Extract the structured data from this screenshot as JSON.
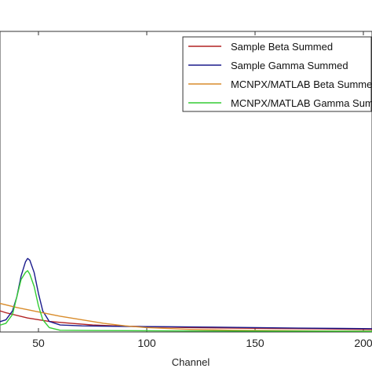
{
  "chart_data": {
    "type": "line",
    "title": "",
    "xlabel": "Channel",
    "ylabel": "",
    "xlim": [
      -17,
      227
    ],
    "ylim": [
      0,
      1
    ],
    "xticks": [
      50,
      100,
      150,
      200
    ],
    "xtick_labels": [
      "50",
      "100",
      "150",
      "200"
    ],
    "grid": false,
    "legend_placement": "top-right",
    "series": [
      {
        "name": "Sample Beta Summed",
        "color": "#b22222",
        "x": [
          -17,
          -5,
          5,
          15,
          25,
          35,
          45,
          55,
          65,
          75,
          85,
          100,
          120,
          140,
          160,
          180,
          200,
          215,
          227
        ],
        "y": [
          0.28,
          0.26,
          0.23,
          0.19,
          0.15,
          0.11,
          0.08,
          0.06,
          0.05,
          0.04,
          0.035,
          0.03,
          0.025,
          0.022,
          0.02,
          0.018,
          0.015,
          0.012,
          0.01
        ]
      },
      {
        "name": "Sample Gamma Summed",
        "color": "#1a1a8c",
        "x": [
          -17,
          0,
          10,
          20,
          30,
          35,
          38,
          40,
          42,
          44,
          45,
          46,
          48,
          50,
          52,
          55,
          60,
          70,
          90,
          110,
          130,
          150,
          170,
          190,
          210,
          227
        ],
        "y": [
          0.02,
          0.025,
          0.03,
          0.04,
          0.05,
          0.07,
          0.12,
          0.2,
          0.32,
          0.4,
          0.42,
          0.41,
          0.34,
          0.22,
          0.12,
          0.06,
          0.04,
          0.035,
          0.032,
          0.03,
          0.028,
          0.025,
          0.022,
          0.02,
          0.018,
          0.015
        ]
      },
      {
        "name": "MCNPX/MATLAB Beta Summed",
        "color": "#d98c2b",
        "x": [
          -17,
          0,
          10,
          20,
          30,
          40,
          50,
          60,
          70,
          80,
          90,
          100,
          120,
          140,
          160,
          180,
          200,
          227
        ],
        "y": [
          0.3,
          0.26,
          0.23,
          0.2,
          0.17,
          0.14,
          0.115,
          0.09,
          0.07,
          0.05,
          0.035,
          0.025,
          0.015,
          0.01,
          0.008,
          0.006,
          0.005,
          0.004
        ]
      },
      {
        "name": "MCNPX/MATLAB Gamma Summed",
        "color": "#33cc33",
        "x": [
          -17,
          0,
          10,
          20,
          30,
          35,
          38,
          40,
          42,
          44,
          45,
          46,
          48,
          50,
          52,
          55,
          60,
          80,
          120,
          160,
          200,
          227
        ],
        "y": [
          0.0,
          0.005,
          0.01,
          0.02,
          0.03,
          0.05,
          0.1,
          0.2,
          0.3,
          0.34,
          0.35,
          0.33,
          0.26,
          0.15,
          0.07,
          0.025,
          0.01,
          0.008,
          0.006,
          0.005,
          0.004,
          0.003
        ]
      }
    ]
  }
}
